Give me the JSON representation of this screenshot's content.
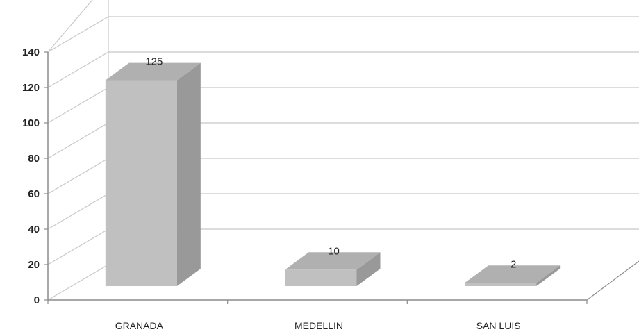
{
  "chart_data": {
    "type": "bar",
    "categories": [
      "GRANADA",
      "MEDELLIN",
      "SAN LUIS"
    ],
    "values": [
      125,
      10,
      2
    ],
    "data_labels": [
      "125",
      "10",
      "2"
    ],
    "title": "",
    "xlabel": "",
    "ylabel": "",
    "ylim": [
      0,
      140
    ],
    "yticks": [
      0,
      20,
      40,
      60,
      80,
      100,
      120,
      140
    ],
    "ytick_labels": [
      "0",
      "20",
      "40",
      "60",
      "80",
      "100",
      "120",
      "140"
    ],
    "grid": true,
    "legend": "none",
    "style": "3d-column",
    "colors": {
      "bar_front": "#c0c0c0",
      "bar_side": "#999999",
      "bar_top": "#b0b0b0",
      "grid": "#c8c8c8",
      "axis": "#8c8c8c"
    }
  }
}
